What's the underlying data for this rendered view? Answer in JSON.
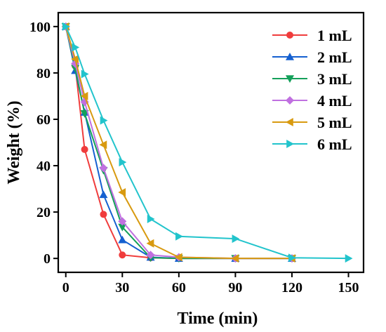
{
  "chart_data": {
    "type": "line",
    "title": "",
    "xlabel": "Time (min)",
    "ylabel": "Weight (%)",
    "xlim": [
      -4,
      158
    ],
    "ylim": [
      -6,
      106
    ],
    "xticks": [
      0,
      30,
      60,
      90,
      120,
      150
    ],
    "yticks": [
      0,
      20,
      40,
      60,
      80,
      100
    ],
    "grid": false,
    "legend_position": "top-right",
    "series": [
      {
        "name": "1 mL",
        "color": "#f03c3c",
        "marker": "circle",
        "x": [
          0,
          5,
          10,
          20,
          30,
          45,
          60,
          90,
          120
        ],
        "y": [
          100,
          83,
          47,
          19,
          1.5,
          0.3,
          0,
          0,
          0
        ]
      },
      {
        "name": "2 mL",
        "color": "#1560d0",
        "marker": "triangle-up",
        "x": [
          0,
          5,
          10,
          20,
          30,
          45,
          60,
          90,
          120
        ],
        "y": [
          100,
          81,
          63,
          27.5,
          8,
          0.5,
          0,
          0,
          0
        ]
      },
      {
        "name": "3 mL",
        "color": "#14a05a",
        "marker": "triangle-down",
        "x": [
          0,
          5,
          10,
          20,
          30,
          45,
          60,
          90,
          120
        ],
        "y": [
          100,
          82,
          62.5,
          38,
          13.5,
          0.3,
          0,
          0,
          0
        ]
      },
      {
        "name": "4 mL",
        "color": "#c070e0",
        "marker": "diamond",
        "x": [
          0,
          5,
          10,
          20,
          30,
          45,
          60,
          90,
          120
        ],
        "y": [
          100,
          84,
          67.5,
          39,
          16,
          1.5,
          0.5,
          0,
          0
        ]
      },
      {
        "name": "5 mL",
        "color": "#d89a10",
        "marker": "triangle-left",
        "x": [
          0,
          5,
          10,
          20,
          30,
          45,
          60,
          90,
          120
        ],
        "y": [
          100,
          86,
          70,
          49,
          28.5,
          6.5,
          0.5,
          0,
          0
        ]
      },
      {
        "name": "6 mL",
        "color": "#22c4cc",
        "marker": "triangle-right",
        "x": [
          0,
          5,
          10,
          20,
          30,
          45,
          60,
          90,
          120,
          150
        ],
        "y": [
          100,
          91,
          79.5,
          59.5,
          41.5,
          17,
          9.5,
          8.5,
          0.3,
          0
        ]
      }
    ]
  }
}
